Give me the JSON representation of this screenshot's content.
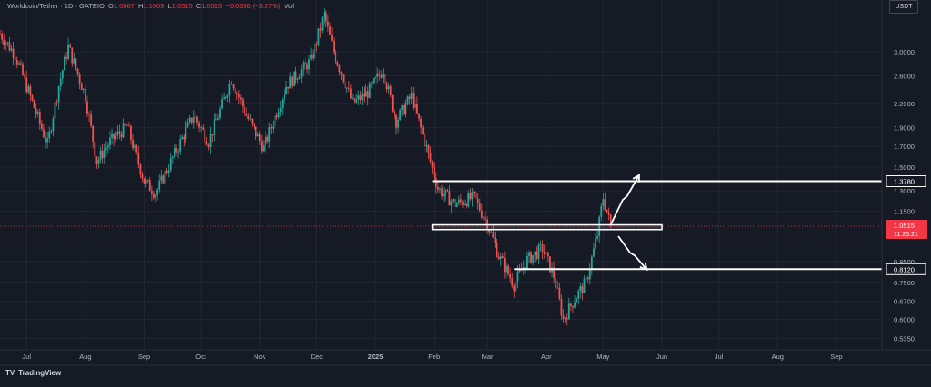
{
  "header": {
    "symbol": "Worldcoin/Tether · 1D · GATEIO",
    "o_label": "O",
    "o": "1.0867",
    "h_label": "H",
    "h": "1.1009",
    "l_label": "L",
    "l": "1.0515",
    "c_label": "C",
    "c": "1.0515",
    "change": "−0.0356 (−3.27%)",
    "vol_label": "Vol"
  },
  "currency_button": "USDT",
  "branding": {
    "logo": "TV",
    "name": "TradingView"
  },
  "colors": {
    "background": "#161a25",
    "up": "#26a69a",
    "down": "#ef5350",
    "annotation": "#ffffff",
    "price_tag": "#f23645"
  },
  "chart_data": {
    "type": "candlestick",
    "title": "Worldcoin/Tether · 1D · GATEIO",
    "y_scale": "log",
    "ylim": [
      0.5,
      4.1
    ],
    "y_ticks": [
      "3.0000",
      "2.6000",
      "2.2000",
      "1.9000",
      "1.7000",
      "1.5000",
      "1.3000",
      "1.1500",
      "0.8500",
      "0.7500",
      "0.6700",
      "0.6000",
      "0.5350"
    ],
    "x_ticks": [
      "Jul",
      "Aug",
      "Sep",
      "Oct",
      "Nov",
      "Dec",
      "2025",
      "Feb",
      "Mar",
      "Apr",
      "May",
      "Jun",
      "Jul",
      "Aug",
      "Sep"
    ],
    "x_range": [
      "2024-06-17",
      "2025-09-25"
    ],
    "price_path": [
      {
        "date": "2024-06-17",
        "close": 3.35
      },
      {
        "date": "2024-06-25",
        "close": 2.95
      },
      {
        "date": "2024-07-05",
        "close": 2.15
      },
      {
        "date": "2024-07-12",
        "close": 1.72
      },
      {
        "date": "2024-07-18",
        "close": 2.45
      },
      {
        "date": "2024-07-23",
        "close": 3.1
      },
      {
        "date": "2024-08-01",
        "close": 2.3
      },
      {
        "date": "2024-08-07",
        "close": 1.55
      },
      {
        "date": "2024-08-14",
        "close": 1.75
      },
      {
        "date": "2024-08-23",
        "close": 1.92
      },
      {
        "date": "2024-09-01",
        "close": 1.38
      },
      {
        "date": "2024-09-07",
        "close": 1.28
      },
      {
        "date": "2024-09-15",
        "close": 1.55
      },
      {
        "date": "2024-09-27",
        "close": 2.05
      },
      {
        "date": "2024-10-05",
        "close": 1.75
      },
      {
        "date": "2024-10-17",
        "close": 2.55
      },
      {
        "date": "2024-10-25",
        "close": 2.05
      },
      {
        "date": "2024-11-03",
        "close": 1.68
      },
      {
        "date": "2024-11-15",
        "close": 2.45
      },
      {
        "date": "2024-11-28",
        "close": 2.85
      },
      {
        "date": "2024-12-05",
        "close": 3.75
      },
      {
        "date": "2024-12-10",
        "close": 3.0
      },
      {
        "date": "2024-12-20",
        "close": 2.2
      },
      {
        "date": "2024-12-28",
        "close": 2.35
      },
      {
        "date": "2025-01-05",
        "close": 2.7
      },
      {
        "date": "2025-01-12",
        "close": 1.98
      },
      {
        "date": "2025-01-20",
        "close": 2.3
      },
      {
        "date": "2025-01-27",
        "close": 1.75
      },
      {
        "date": "2025-02-03",
        "close": 1.32
      },
      {
        "date": "2025-02-12",
        "close": 1.2
      },
      {
        "date": "2025-02-22",
        "close": 1.25
      },
      {
        "date": "2025-03-01",
        "close": 1.07
      },
      {
        "date": "2025-03-07",
        "close": 0.88
      },
      {
        "date": "2025-03-15",
        "close": 0.74
      },
      {
        "date": "2025-03-22",
        "close": 0.86
      },
      {
        "date": "2025-03-30",
        "close": 0.92
      },
      {
        "date": "2025-04-05",
        "close": 0.78
      },
      {
        "date": "2025-04-10",
        "close": 0.6
      },
      {
        "date": "2025-04-16",
        "close": 0.68
      },
      {
        "date": "2025-04-22",
        "close": 0.75
      },
      {
        "date": "2025-04-28",
        "close": 1.0
      },
      {
        "date": "2025-05-01",
        "close": 1.25
      },
      {
        "date": "2025-05-05",
        "close": 1.0515
      }
    ],
    "levels": [
      {
        "label": "1.3780",
        "value": 1.378,
        "from": "2025-01-31",
        "to": "2025-09-25"
      },
      {
        "label": "0.8120",
        "value": 0.812,
        "from": "2025-03-15",
        "to": "2025-09-25"
      }
    ],
    "zone": {
      "low": 1.03,
      "high": 1.06,
      "from": "2025-01-31",
      "to": "2025-06-01"
    },
    "current_price": {
      "value": 1.0515,
      "label": "1.0515",
      "countdown": "11:25:21"
    },
    "annotations": [
      {
        "type": "arrow-up",
        "from": {
          "date": "2025-05-05",
          "value": 1.06
        },
        "to": {
          "date": "2025-05-20",
          "value": 1.43
        }
      },
      {
        "type": "arrow-down",
        "from": {
          "date": "2025-05-09",
          "value": 0.99
        },
        "to": {
          "date": "2025-05-24",
          "value": 0.81
        }
      }
    ]
  }
}
